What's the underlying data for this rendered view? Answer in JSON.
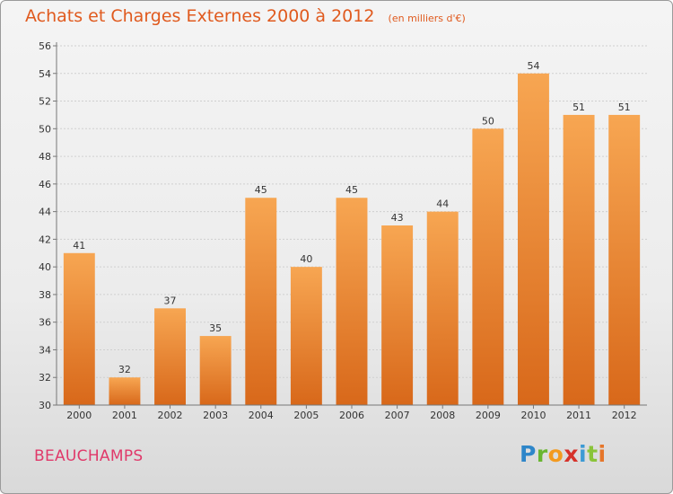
{
  "title": "Achats et Charges Externes 2000 à 2012",
  "unit": "(en milliers d'€)",
  "place": "BEAUCHAMPS",
  "logo": {
    "text": "Proxiti"
  },
  "colors": {
    "bar_top": "#f7a652",
    "bar_bottom": "#d8681a",
    "title": "#e05a1e",
    "place": "#e0396a"
  },
  "chart_data": {
    "type": "bar",
    "categories": [
      "2000",
      "2001",
      "2002",
      "2003",
      "2004",
      "2005",
      "2006",
      "2007",
      "2008",
      "2009",
      "2010",
      "2011",
      "2012"
    ],
    "values": [
      41,
      32,
      37,
      35,
      45,
      40,
      45,
      43,
      44,
      50,
      54,
      51,
      51
    ],
    "title": "Achats et Charges Externes 2000 à 2012",
    "xlabel": "",
    "ylabel": "",
    "ylim": [
      30,
      56
    ],
    "yticks": [
      30,
      32,
      34,
      36,
      38,
      40,
      42,
      44,
      46,
      48,
      50,
      52,
      54,
      56
    ],
    "grid": true,
    "legend": "none"
  }
}
